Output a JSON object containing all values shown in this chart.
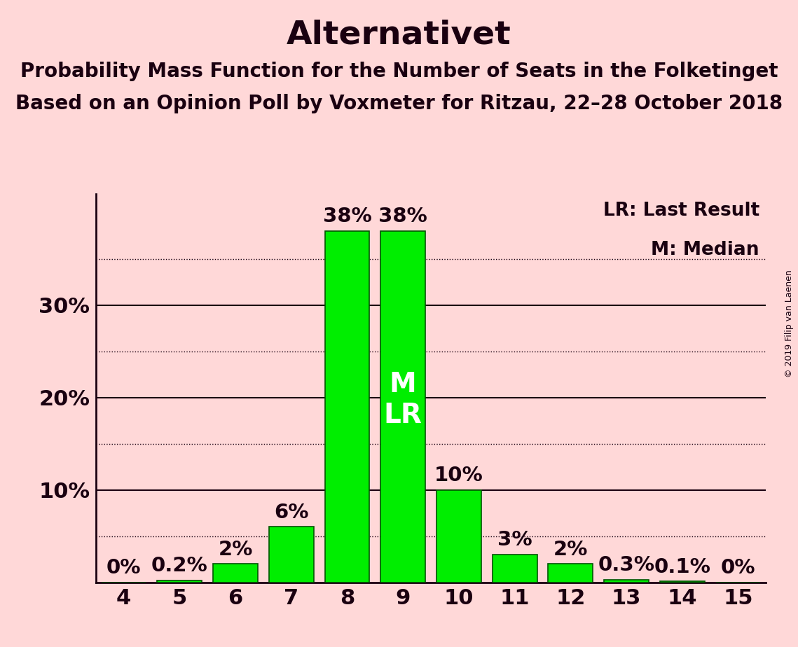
{
  "title": "Alternativet",
  "subtitle1": "Probability Mass Function for the Number of Seats in the Folketinget",
  "subtitle2": "Based on an Opinion Poll by Voxmeter for Ritzau, 22–28 October 2018",
  "copyright": "© 2019 Filip van Laenen",
  "seats": [
    4,
    5,
    6,
    7,
    8,
    9,
    10,
    11,
    12,
    13,
    14,
    15
  ],
  "probabilities": [
    0.0,
    0.2,
    2.0,
    6.0,
    38.0,
    38.0,
    10.0,
    3.0,
    2.0,
    0.3,
    0.1,
    0.0
  ],
  "bar_color": "#00ee00",
  "bar_edge_color": "#005500",
  "background_color": "#ffd8d8",
  "text_color": "#1a0010",
  "median_seat": 9,
  "last_result_seat": 9,
  "ylim": [
    0,
    42
  ],
  "solid_gridlines": [
    10,
    20,
    30
  ],
  "dotted_gridlines": [
    5,
    15,
    25,
    35
  ],
  "legend_lr": "LR: Last Result",
  "legend_m": "M: Median",
  "title_fontsize": 34,
  "subtitle_fontsize": 20,
  "tick_fontsize": 22,
  "bar_label_fontsize": 21,
  "mlr_fontsize": 28
}
